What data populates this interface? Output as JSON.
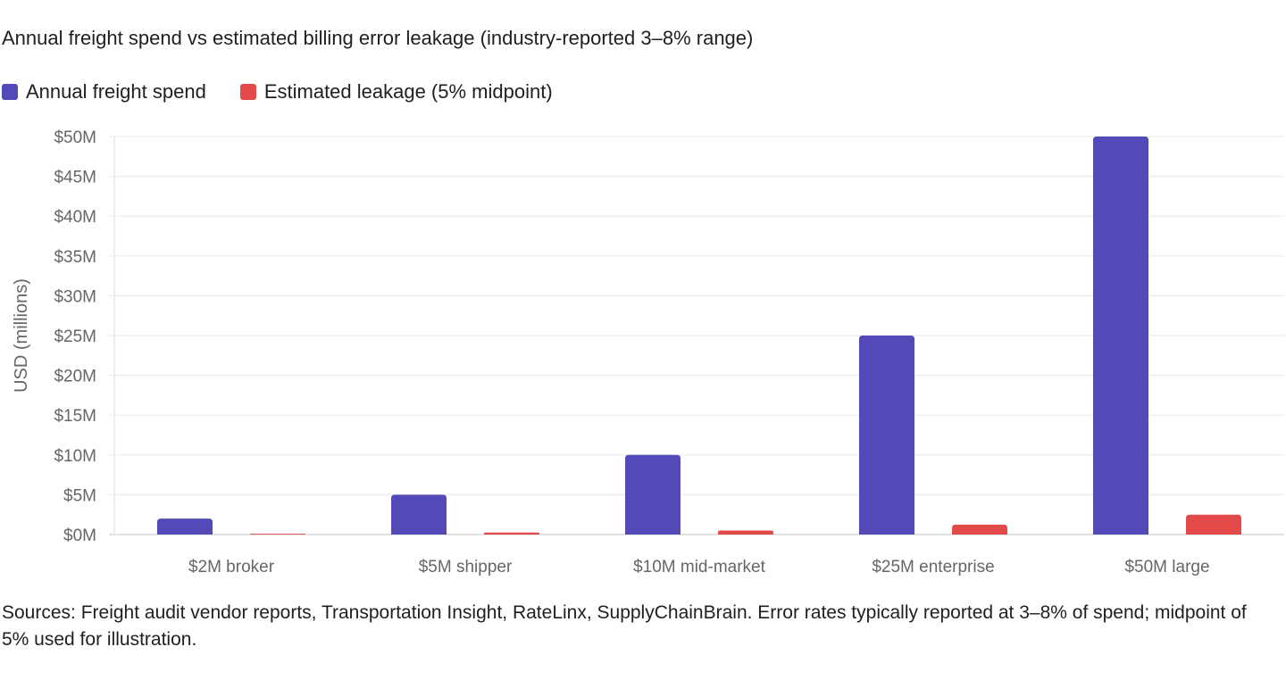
{
  "chart_data": {
    "type": "bar",
    "title": "Annual freight spend vs estimated billing error leakage (industry-reported 3–8% range)",
    "categories": [
      "$2M broker",
      "$5M shipper",
      "$10M mid-market",
      "$25M enterprise",
      "$50M large"
    ],
    "series": [
      {
        "name": "Annual freight spend",
        "color": "#5349b7",
        "values": [
          2,
          5,
          10,
          25,
          50
        ]
      },
      {
        "name": "Estimated leakage (5% midpoint)",
        "color": "#e24a4a",
        "values": [
          0.1,
          0.25,
          0.5,
          1.25,
          2.5
        ]
      }
    ],
    "ylabel": "USD (millions)",
    "ylim": [
      0,
      50
    ],
    "yticks": [
      0,
      5,
      10,
      15,
      20,
      25,
      30,
      35,
      40,
      45,
      50
    ],
    "ytick_labels": [
      "$0M",
      "$5M",
      "$10M",
      "$15M",
      "$20M",
      "$25M",
      "$30M",
      "$35M",
      "$40M",
      "$45M",
      "$50M"
    ],
    "grid": true,
    "legend_position": "top-left"
  },
  "caption": "Sources: Freight audit vendor reports, Transportation Insight, RateLinx, SupplyChainBrain. Error rates typically reported at 3–8% of spend; midpoint of 5% used for illustration."
}
